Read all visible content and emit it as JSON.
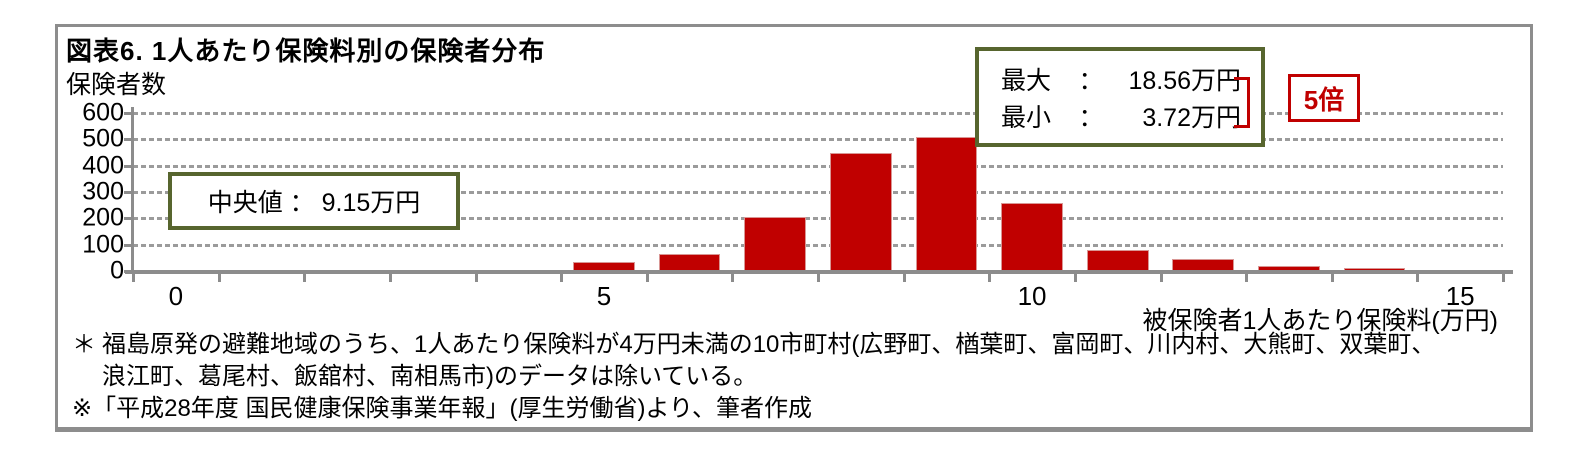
{
  "figure": {
    "title": "図表6. 1人あたり保険料別の保険者分布",
    "y_axis_unit_label": "保険者数",
    "x_axis_title": "被保険者1人あたり保険料(万円)"
  },
  "chart_data": {
    "type": "bar",
    "title": "図表6. 1人あたり保険料別の保険者分布",
    "ylabel": "保険者数",
    "xlabel": "被保険者1人あたり保険料(万円)",
    "categories": [
      0,
      1,
      2,
      3,
      4,
      5,
      6,
      7,
      8,
      9,
      10,
      11,
      12,
      13,
      14,
      15
    ],
    "values": [
      0,
      0,
      0,
      0,
      5,
      35,
      65,
      205,
      450,
      510,
      260,
      80,
      45,
      20,
      10,
      0
    ],
    "x_tick_labels_shown": [
      "0",
      "5",
      "10",
      "15"
    ],
    "x_tick_label_positions": [
      0,
      5,
      10,
      15
    ],
    "ylim": [
      0,
      600
    ],
    "y_tick_step": 100,
    "grid": "horizontal dotted",
    "legend": "none",
    "bar_color": "#c00000",
    "axis_color": "#8c8c8c"
  },
  "annotations": {
    "median": {
      "label": "中央値",
      "separator": "：",
      "value": "9.15万円"
    },
    "stats": {
      "separator": "：",
      "rows": [
        {
          "label": "最大",
          "value": "18.56万円"
        },
        {
          "label": "最小",
          "value": "3.72万円"
        }
      ]
    },
    "ratio_label": "5倍"
  },
  "footnotes": {
    "marker1": "＊",
    "line1": "福島原発の避難地域のうち、1人あたり保険料が4万円未満の10市町村(広野町、楢葉町、富岡町、川内村、大熊町、双葉町、",
    "line2": "浪江町、葛尾村、飯舘村、南相馬市)のデータは除いている。",
    "line3": "※「平成28年度 国民健康保険事業年報」(厚生労働省)より、筆者作成"
  },
  "colors": {
    "bar": "#c00000",
    "annotation_border": "#57652e",
    "ratio_red": "#c00000",
    "axis_gray": "#8c8c8c",
    "frame_gray": "#8d8d8d"
  }
}
